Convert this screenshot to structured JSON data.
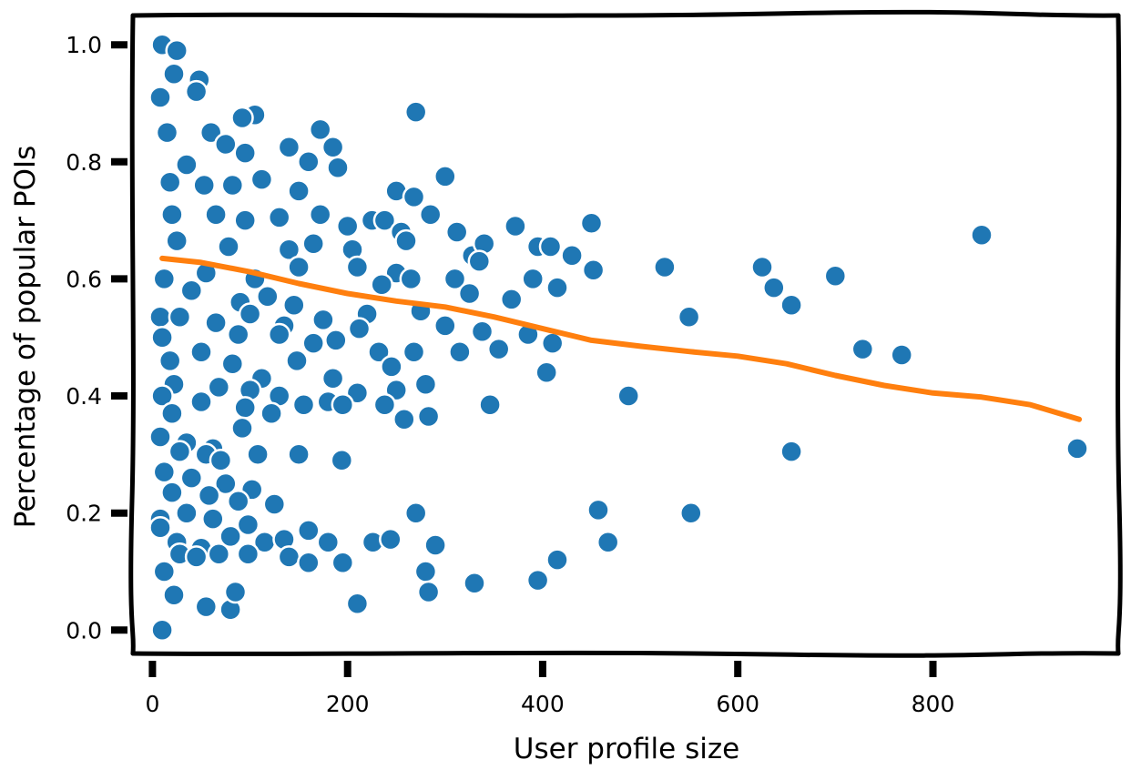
{
  "chart_data": {
    "type": "scatter",
    "title": "",
    "xlabel": "User profile size",
    "ylabel": "Percentage of popular POIs",
    "xlim": [
      -20,
      990
    ],
    "ylim": [
      -0.04,
      1.05
    ],
    "xticks": [
      0,
      200,
      400,
      600,
      800
    ],
    "yticks": [
      0.0,
      0.2,
      0.4,
      0.6,
      0.8,
      1.0
    ],
    "xtick_labels": [
      "0",
      "200",
      "400",
      "600",
      "800"
    ],
    "ytick_labels": [
      "0.0",
      "0.2",
      "0.4",
      "0.6",
      "0.8",
      "1.0"
    ],
    "grid": false,
    "colors": {
      "points": "#1f77b4",
      "trend": "#ff7f0e"
    },
    "series": [
      {
        "type": "scatter",
        "points": [
          [
            10,
            1.0
          ],
          [
            25,
            0.99
          ],
          [
            48,
            0.94
          ],
          [
            22,
            0.95
          ],
          [
            8,
            0.91
          ],
          [
            45,
            0.92
          ],
          [
            270,
            0.885
          ],
          [
            105,
            0.88
          ],
          [
            92,
            0.875
          ],
          [
            15,
            0.85
          ],
          [
            172,
            0.855
          ],
          [
            60,
            0.85
          ],
          [
            185,
            0.825
          ],
          [
            140,
            0.825
          ],
          [
            75,
            0.83
          ],
          [
            300,
            0.775
          ],
          [
            95,
            0.815
          ],
          [
            35,
            0.795
          ],
          [
            18,
            0.765
          ],
          [
            53,
            0.76
          ],
          [
            112,
            0.77
          ],
          [
            160,
            0.8
          ],
          [
            190,
            0.79
          ],
          [
            82,
            0.76
          ],
          [
            225,
            0.7
          ],
          [
            250,
            0.75
          ],
          [
            268,
            0.74
          ],
          [
            150,
            0.75
          ],
          [
            285,
            0.71
          ],
          [
            20,
            0.71
          ],
          [
            65,
            0.71
          ],
          [
            95,
            0.7
          ],
          [
            130,
            0.705
          ],
          [
            172,
            0.71
          ],
          [
            200,
            0.69
          ],
          [
            238,
            0.7
          ],
          [
            255,
            0.68
          ],
          [
            372,
            0.69
          ],
          [
            450,
            0.695
          ],
          [
            312,
            0.68
          ],
          [
            25,
            0.665
          ],
          [
            78,
            0.655
          ],
          [
            140,
            0.65
          ],
          [
            165,
            0.66
          ],
          [
            205,
            0.65
          ],
          [
            260,
            0.665
          ],
          [
            328,
            0.64
          ],
          [
            340,
            0.66
          ],
          [
            395,
            0.655
          ],
          [
            430,
            0.64
          ],
          [
            408,
            0.655
          ],
          [
            850,
            0.675
          ],
          [
            335,
            0.63
          ],
          [
            12,
            0.6
          ],
          [
            55,
            0.61
          ],
          [
            105,
            0.6
          ],
          [
            150,
            0.62
          ],
          [
            210,
            0.62
          ],
          [
            250,
            0.61
          ],
          [
            265,
            0.6
          ],
          [
            310,
            0.6
          ],
          [
            452,
            0.615
          ],
          [
            390,
            0.6
          ],
          [
            415,
            0.585
          ],
          [
            525,
            0.62
          ],
          [
            625,
            0.62
          ],
          [
            637,
            0.585
          ],
          [
            700,
            0.605
          ],
          [
            40,
            0.58
          ],
          [
            90,
            0.56
          ],
          [
            118,
            0.57
          ],
          [
            145,
            0.555
          ],
          [
            235,
            0.59
          ],
          [
            325,
            0.575
          ],
          [
            368,
            0.565
          ],
          [
            655,
            0.555
          ],
          [
            8,
            0.535
          ],
          [
            28,
            0.535
          ],
          [
            65,
            0.525
          ],
          [
            100,
            0.54
          ],
          [
            135,
            0.52
          ],
          [
            175,
            0.53
          ],
          [
            220,
            0.54
          ],
          [
            275,
            0.545
          ],
          [
            300,
            0.52
          ],
          [
            338,
            0.51
          ],
          [
            550,
            0.535
          ],
          [
            10,
            0.5
          ],
          [
            50,
            0.475
          ],
          [
            88,
            0.505
          ],
          [
            130,
            0.505
          ],
          [
            165,
            0.49
          ],
          [
            188,
            0.495
          ],
          [
            212,
            0.515
          ],
          [
            232,
            0.475
          ],
          [
            268,
            0.475
          ],
          [
            315,
            0.475
          ],
          [
            355,
            0.48
          ],
          [
            385,
            0.505
          ],
          [
            410,
            0.49
          ],
          [
            728,
            0.48
          ],
          [
            768,
            0.47
          ],
          [
            18,
            0.46
          ],
          [
            82,
            0.455
          ],
          [
            112,
            0.43
          ],
          [
            148,
            0.46
          ],
          [
            185,
            0.43
          ],
          [
            245,
            0.45
          ],
          [
            404,
            0.44
          ],
          [
            22,
            0.42
          ],
          [
            68,
            0.415
          ],
          [
            100,
            0.41
          ],
          [
            130,
            0.4
          ],
          [
            180,
            0.39
          ],
          [
            210,
            0.405
          ],
          [
            250,
            0.41
          ],
          [
            280,
            0.42
          ],
          [
            488,
            0.4
          ],
          [
            10,
            0.4
          ],
          [
            50,
            0.39
          ],
          [
            95,
            0.38
          ],
          [
            20,
            0.37
          ],
          [
            122,
            0.37
          ],
          [
            155,
            0.385
          ],
          [
            195,
            0.385
          ],
          [
            238,
            0.385
          ],
          [
            258,
            0.36
          ],
          [
            283,
            0.365
          ],
          [
            346,
            0.385
          ],
          [
            948,
            0.31
          ],
          [
            8,
            0.33
          ],
          [
            35,
            0.32
          ],
          [
            62,
            0.31
          ],
          [
            92,
            0.345
          ],
          [
            28,
            0.305
          ],
          [
            55,
            0.3
          ],
          [
            70,
            0.29
          ],
          [
            108,
            0.3
          ],
          [
            150,
            0.3
          ],
          [
            194,
            0.29
          ],
          [
            655,
            0.305
          ],
          [
            12,
            0.27
          ],
          [
            40,
            0.26
          ],
          [
            75,
            0.25
          ],
          [
            102,
            0.24
          ],
          [
            20,
            0.235
          ],
          [
            58,
            0.23
          ],
          [
            88,
            0.22
          ],
          [
            125,
            0.215
          ],
          [
            270,
            0.2
          ],
          [
            457,
            0.205
          ],
          [
            552,
            0.2
          ],
          [
            8,
            0.19
          ],
          [
            35,
            0.2
          ],
          [
            62,
            0.19
          ],
          [
            98,
            0.18
          ],
          [
            8,
            0.175
          ],
          [
            25,
            0.15
          ],
          [
            50,
            0.14
          ],
          [
            80,
            0.16
          ],
          [
            115,
            0.15
          ],
          [
            135,
            0.155
          ],
          [
            160,
            0.17
          ],
          [
            180,
            0.15
          ],
          [
            226,
            0.15
          ],
          [
            244,
            0.155
          ],
          [
            290,
            0.145
          ],
          [
            467,
            0.15
          ],
          [
            12,
            0.1
          ],
          [
            28,
            0.13
          ],
          [
            45,
            0.125
          ],
          [
            68,
            0.13
          ],
          [
            98,
            0.13
          ],
          [
            140,
            0.125
          ],
          [
            160,
            0.115
          ],
          [
            195,
            0.115
          ],
          [
            280,
            0.1
          ],
          [
            415,
            0.12
          ],
          [
            395,
            0.085
          ],
          [
            55,
            0.04
          ],
          [
            80,
            0.035
          ],
          [
            85,
            0.065
          ],
          [
            22,
            0.06
          ],
          [
            210,
            0.045
          ],
          [
            283,
            0.065
          ],
          [
            330,
            0.08
          ],
          [
            10,
            0.0
          ]
        ]
      },
      {
        "type": "line",
        "points": [
          [
            10,
            0.635
          ],
          [
            50,
            0.628
          ],
          [
            100,
            0.612
          ],
          [
            150,
            0.592
          ],
          [
            200,
            0.575
          ],
          [
            250,
            0.562
          ],
          [
            300,
            0.552
          ],
          [
            350,
            0.535
          ],
          [
            400,
            0.515
          ],
          [
            450,
            0.495
          ],
          [
            500,
            0.485
          ],
          [
            550,
            0.476
          ],
          [
            600,
            0.468
          ],
          [
            650,
            0.455
          ],
          [
            700,
            0.435
          ],
          [
            750,
            0.418
          ],
          [
            800,
            0.405
          ],
          [
            850,
            0.398
          ],
          [
            900,
            0.385
          ],
          [
            950,
            0.36
          ]
        ]
      }
    ]
  }
}
